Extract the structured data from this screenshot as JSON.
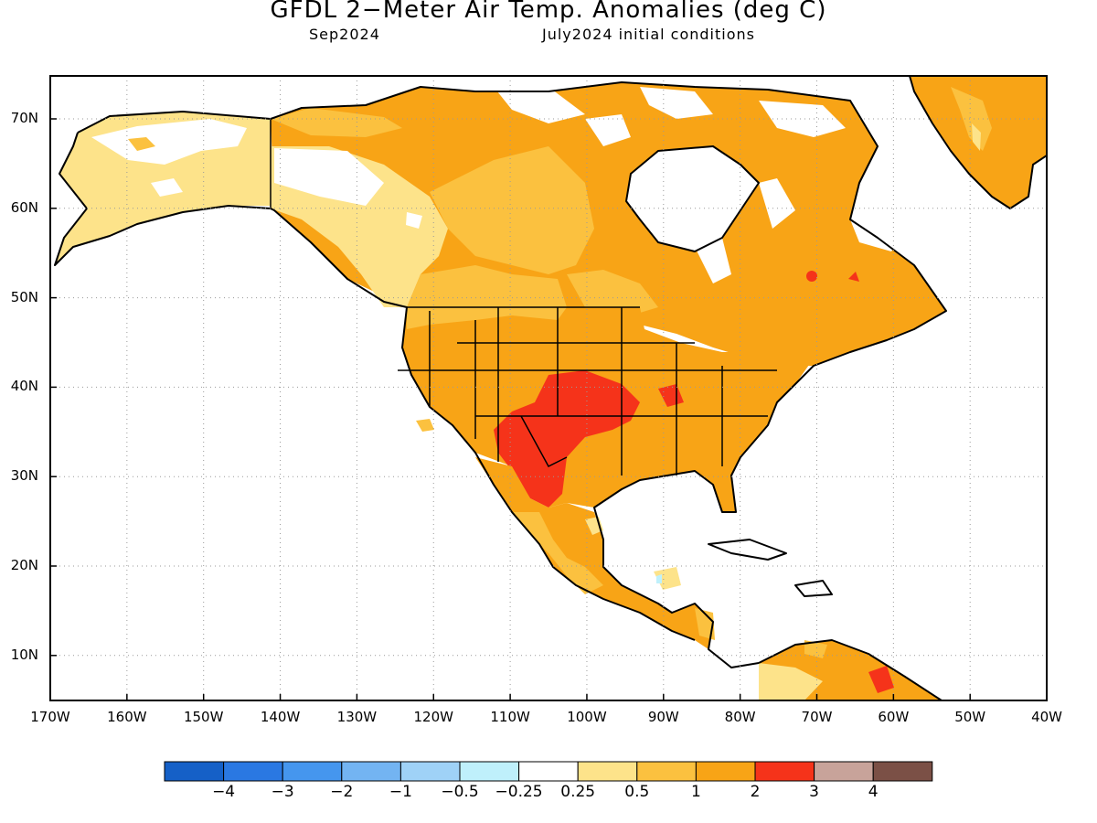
{
  "title": "GFDL 2−Meter Air Temp. Anomalies (deg C)",
  "valid_month": "Sep2024",
  "initial_conditions": "July2024 initial conditions",
  "lat_labels": [
    "70N",
    "60N",
    "50N",
    "40N",
    "30N",
    "20N",
    "10N"
  ],
  "lon_labels": [
    "170W",
    "160W",
    "150W",
    "140W",
    "130W",
    "120W",
    "110W",
    "100W",
    "90W",
    "80W",
    "70W",
    "60W",
    "50W",
    "40W"
  ],
  "colorbar": {
    "colors": [
      "#1560c7",
      "#2a78e2",
      "#4596ee",
      "#73b4f2",
      "#9fd2f7",
      "#bff0fb",
      "#ffffff",
      "#fde38a",
      "#fbc13f",
      "#f8a416",
      "#f5331a",
      "#c8a39a",
      "#7b5046"
    ],
    "labels": [
      "−4",
      "−3",
      "−2",
      "−1",
      "−0.5",
      "−0.25",
      "0.25",
      "0.5",
      "1",
      "2",
      "3",
      "4"
    ]
  }
}
